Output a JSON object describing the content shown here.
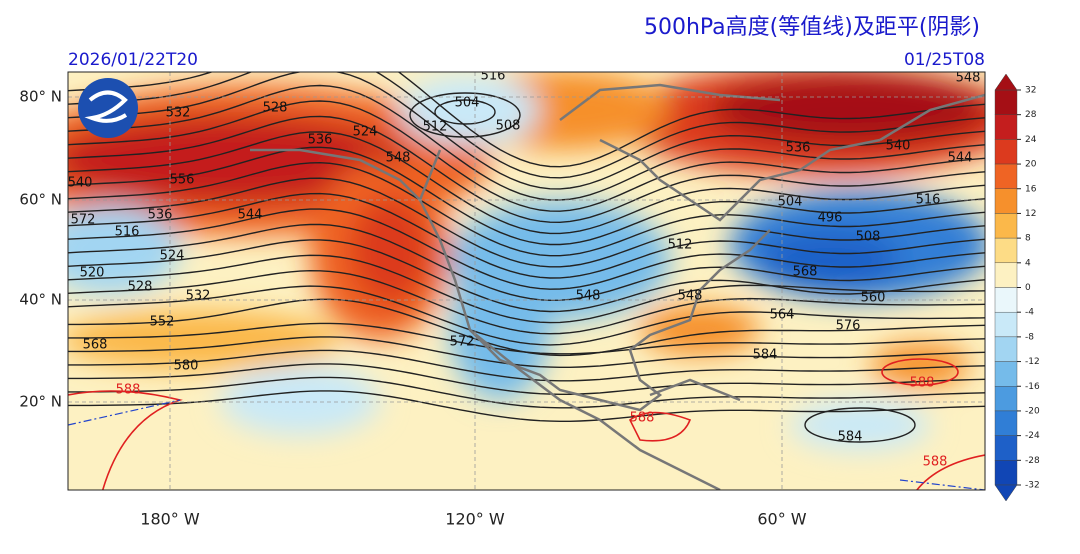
{
  "header": {
    "title": "500hPa高度(等值线)及距平(阴影)",
    "init_time": "2026/01/22T20",
    "valid_time": "01/25T08"
  },
  "map": {
    "lat_labels": [
      "80° N",
      "60° N",
      "40° N",
      "20° N"
    ],
    "lon_labels": [
      "180° W",
      "120° W",
      "60° W"
    ],
    "contour_labels": [
      532,
      528,
      524,
      504,
      512,
      508,
      516,
      536,
      556,
      548,
      544,
      536,
      540,
      572,
      516,
      524,
      520,
      528,
      532,
      552,
      568,
      580,
      588,
      572,
      548,
      548,
      512,
      504,
      496,
      508,
      536,
      540,
      544,
      548,
      516,
      568,
      560,
      564,
      576,
      584,
      588,
      588,
      584,
      588
    ]
  },
  "colorbar": {
    "ticks": [
      32,
      28,
      24,
      20,
      16,
      12,
      8,
      4,
      0,
      -4,
      -8,
      -12,
      -16,
      -20,
      -24,
      -28,
      -32
    ],
    "colors": [
      "#a50f15",
      "#c41e1e",
      "#dc3a1e",
      "#ef6424",
      "#f6902c",
      "#fbb84a",
      "#fddc86",
      "#fdf1c2",
      "#eaf7fb",
      "#c9e9f8",
      "#a2d5f2",
      "#75bbea",
      "#4c9be0",
      "#307ed6",
      "#1e60c8",
      "#1146b5"
    ]
  }
}
